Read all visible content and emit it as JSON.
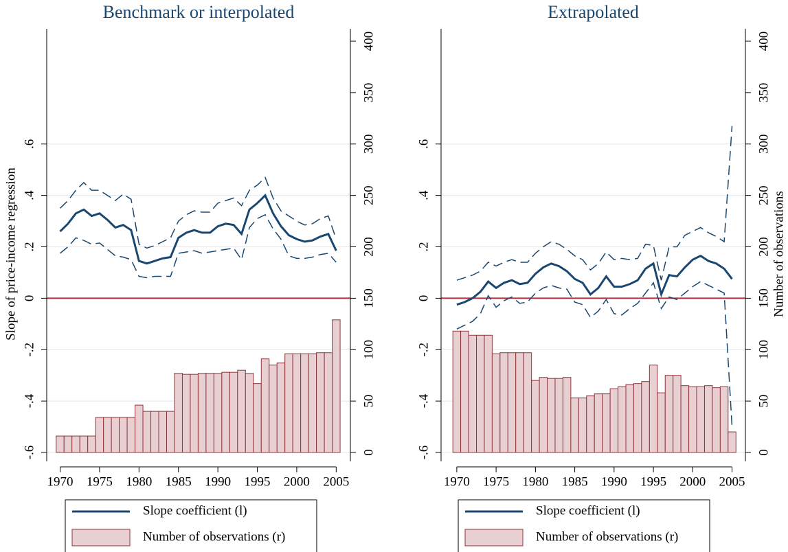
{
  "chart_data": [
    {
      "type": "combo",
      "title": "Benchmark or interpolated",
      "y_label": "Slope of price-income regression",
      "x": [
        1970,
        1971,
        1972,
        1973,
        1974,
        1975,
        1976,
        1977,
        1978,
        1979,
        1980,
        1981,
        1982,
        1983,
        1984,
        1985,
        1986,
        1987,
        1988,
        1989,
        1990,
        1991,
        1992,
        1993,
        1994,
        1995,
        1996,
        1997,
        1998,
        1999,
        2000,
        2001,
        2002,
        2003,
        2004,
        2005
      ],
      "xlim": [
        1968.3,
        2006.8
      ],
      "xticks": [
        1970,
        1975,
        1980,
        1985,
        1990,
        1995,
        2000,
        2005
      ],
      "ylim": [
        -0.6,
        1.0
      ],
      "yticks": [
        {
          "value": -0.6,
          "label": "-.6"
        },
        {
          "value": -0.4,
          "label": "-.4"
        },
        {
          "value": -0.2,
          "label": "-.2"
        },
        0,
        {
          "value": 0.2,
          "label": ".2"
        },
        {
          "value": 0.4,
          "label": ".4"
        },
        {
          "value": 0.6,
          "label": ".6"
        }
      ],
      "y2lim": [
        0,
        400
      ],
      "y2ticks": [
        0,
        50,
        100,
        150,
        200,
        250,
        300,
        350,
        400
      ],
      "grid": true,
      "zero_line_color": "#b0303e",
      "legend": "bottom",
      "series": [
        {
          "name": "Slope coefficient (l)",
          "color": "#1a476f",
          "values": [
            0.26,
            0.29,
            0.33,
            0.345,
            0.32,
            0.33,
            0.305,
            0.275,
            0.285,
            0.265,
            0.145,
            0.135,
            0.145,
            0.155,
            0.16,
            0.235,
            0.255,
            0.265,
            0.255,
            0.255,
            0.28,
            0.29,
            0.285,
            0.25,
            0.345,
            0.37,
            0.4,
            0.33,
            0.28,
            0.245,
            0.23,
            0.22,
            0.225,
            0.24,
            0.25,
            0.185
          ],
          "upper": [
            0.35,
            0.38,
            0.42,
            0.45,
            0.42,
            0.42,
            0.4,
            0.38,
            0.405,
            0.385,
            0.21,
            0.195,
            0.205,
            0.22,
            0.235,
            0.3,
            0.325,
            0.34,
            0.335,
            0.335,
            0.37,
            0.38,
            0.39,
            0.36,
            0.42,
            0.44,
            0.47,
            0.39,
            0.34,
            0.32,
            0.3,
            0.285,
            0.29,
            0.31,
            0.32,
            0.23
          ],
          "lower": [
            0.175,
            0.2,
            0.235,
            0.225,
            0.21,
            0.215,
            0.19,
            0.165,
            0.16,
            0.15,
            0.085,
            0.08,
            0.085,
            0.085,
            0.085,
            0.175,
            0.18,
            0.185,
            0.175,
            0.18,
            0.185,
            0.19,
            0.195,
            0.15,
            0.275,
            0.31,
            0.325,
            0.27,
            0.23,
            0.165,
            0.155,
            0.155,
            0.16,
            0.17,
            0.175,
            0.14
          ]
        },
        {
          "name": "Number of observations (r)",
          "color": "#e8cfd1",
          "edge_color": "#90353b",
          "axis": "y2",
          "values": [
            16,
            16,
            16,
            16,
            16,
            34,
            34,
            34,
            34,
            34,
            46,
            40,
            40,
            40,
            40,
            77,
            76,
            76,
            77,
            77,
            77,
            78,
            78,
            80,
            77,
            67,
            91,
            85,
            87,
            96,
            96,
            96,
            96,
            97,
            97,
            129
          ]
        }
      ]
    },
    {
      "type": "combo",
      "title": "Extrapolated",
      "y2_label": "Number of observations",
      "x": [
        1970,
        1971,
        1972,
        1973,
        1974,
        1975,
        1976,
        1977,
        1978,
        1979,
        1980,
        1981,
        1982,
        1983,
        1984,
        1985,
        1986,
        1987,
        1988,
        1989,
        1990,
        1991,
        1992,
        1993,
        1994,
        1995,
        1996,
        1997,
        1998,
        1999,
        2000,
        2001,
        2002,
        2003,
        2004,
        2005
      ],
      "xlim": [
        1968.0,
        2006.7
      ],
      "xticks": [
        1970,
        1975,
        1980,
        1985,
        1990,
        1995,
        2000,
        2005
      ],
      "ylim": [
        -0.6,
        1.0
      ],
      "yticks": [
        {
          "value": -0.6,
          "label": "-.6"
        },
        {
          "value": -0.4,
          "label": "-.4"
        },
        {
          "value": -0.2,
          "label": "-.2"
        },
        0,
        {
          "value": 0.2,
          "label": ".2"
        },
        {
          "value": 0.4,
          "label": ".4"
        },
        {
          "value": 0.6,
          "label": ".6"
        }
      ],
      "y2lim": [
        0,
        400
      ],
      "y2ticks": [
        0,
        50,
        100,
        150,
        200,
        250,
        300,
        350,
        400
      ],
      "grid": true,
      "zero_line_color": "#b0303e",
      "legend": "bottom",
      "series": [
        {
          "name": "Slope coefficient (l)",
          "color": "#1a476f",
          "values": [
            -0.025,
            -0.015,
            0,
            0.025,
            0.065,
            0.04,
            0.06,
            0.07,
            0.055,
            0.06,
            0.095,
            0.12,
            0.135,
            0.125,
            0.105,
            0.075,
            0.06,
            0.015,
            0.04,
            0.085,
            0.045,
            0.045,
            0.055,
            0.07,
            0.115,
            0.135,
            0.015,
            0.09,
            0.085,
            0.12,
            0.15,
            0.165,
            0.145,
            0.135,
            0.115,
            0.075
          ],
          "upper": [
            0.07,
            0.08,
            0.09,
            0.105,
            0.14,
            0.125,
            0.14,
            0.15,
            0.14,
            0.14,
            0.175,
            0.2,
            0.22,
            0.21,
            0.19,
            0.165,
            0.15,
            0.11,
            0.135,
            0.18,
            0.15,
            0.155,
            0.15,
            0.155,
            0.21,
            0.205,
            0.07,
            0.2,
            0.2,
            0.245,
            0.26,
            0.275,
            0.255,
            0.24,
            0.22,
            0.67
          ],
          "lower": [
            -0.12,
            -0.105,
            -0.09,
            -0.06,
            0.01,
            -0.035,
            -0.01,
            0.005,
            -0.02,
            -0.015,
            0.02,
            0.04,
            0.05,
            0.04,
            0.035,
            -0.015,
            -0.025,
            -0.075,
            -0.05,
            -0.005,
            -0.06,
            -0.065,
            -0.04,
            -0.02,
            0.02,
            0.06,
            -0.04,
            0.005,
            -0.005,
            0.02,
            0.045,
            0.065,
            0.05,
            0.035,
            0.02,
            -0.5
          ]
        },
        {
          "name": "Number of observations (r)",
          "color": "#e8cfd1",
          "edge_color": "#90353b",
          "axis": "y2",
          "values": [
            118,
            118,
            114,
            114,
            114,
            96,
            97,
            97,
            97,
            97,
            70,
            73,
            72,
            72,
            73,
            53,
            53,
            55,
            57,
            57,
            62,
            64,
            66,
            67,
            69,
            85,
            58,
            75,
            75,
            65,
            64,
            64,
            65,
            63,
            64,
            20
          ]
        }
      ]
    }
  ]
}
